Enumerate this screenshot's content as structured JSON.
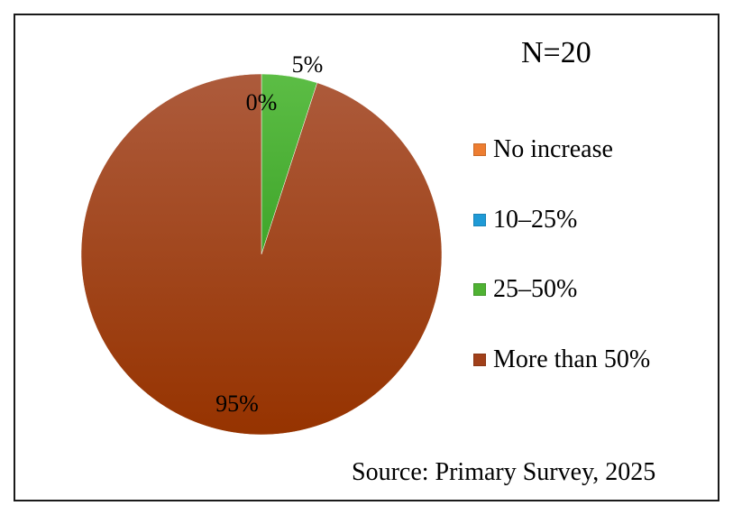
{
  "chart_data": {
    "type": "pie",
    "title": "",
    "annotation": "N=20",
    "source": "Source: Primary Survey, 2025",
    "legend_position": "right",
    "slices": [
      {
        "label": "No increase",
        "value": 0,
        "data_label": "0%",
        "color": "#ed7d31"
      },
      {
        "label": "10–25%",
        "value": 0,
        "data_label": "0%",
        "color": "#1f9ad6"
      },
      {
        "label": "25–50%",
        "value": 5,
        "data_label": "5%",
        "color": "#4fb233"
      },
      {
        "label": "More than 50%",
        "value": 95,
        "data_label": "95%",
        "color": "#a1401a"
      }
    ]
  }
}
